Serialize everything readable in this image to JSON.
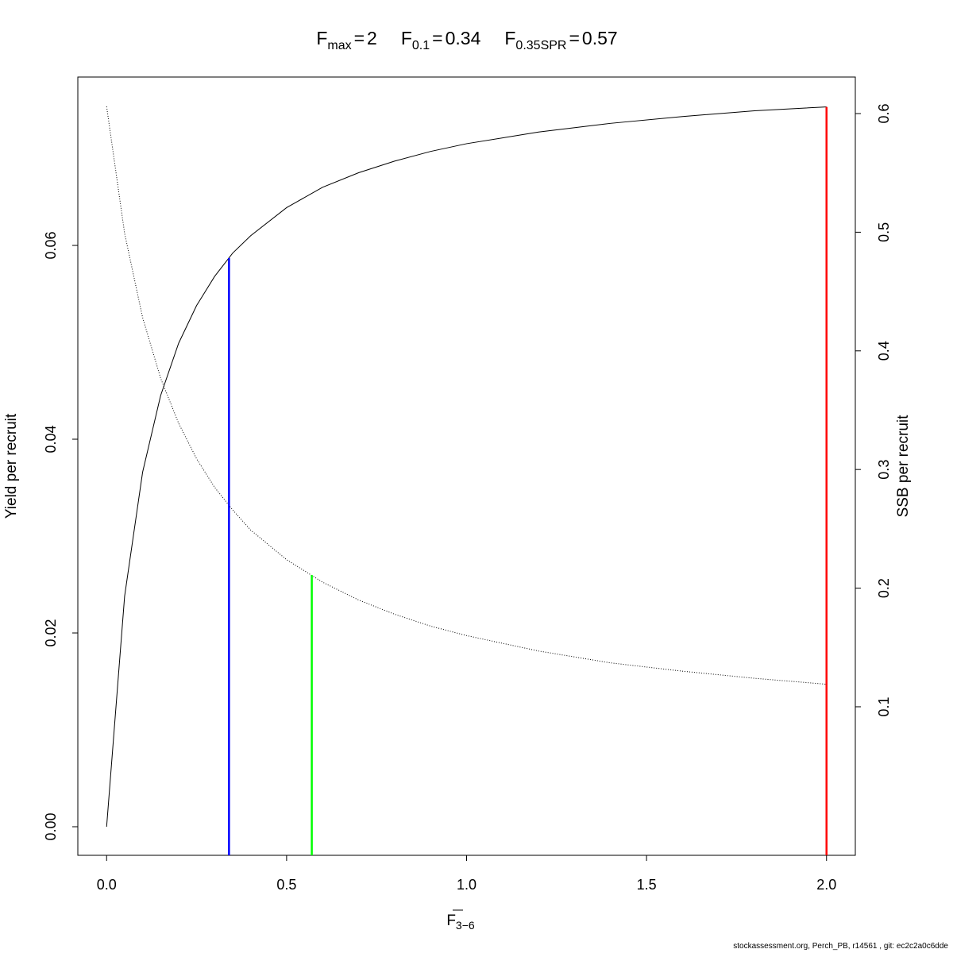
{
  "chart_data": {
    "type": "line",
    "title_items": [
      {
        "label": "F",
        "subscript": "max",
        "operator": "=",
        "value": 2,
        "color": "#ff0000",
        "top": 0.0743,
        "top_axis": "y"
      },
      {
        "label": "F",
        "subscript": "0.1",
        "operator": "=",
        "value": 0.34,
        "color": "#0000ff",
        "top": 0.0587,
        "top_axis": "y"
      },
      {
        "label": "F",
        "subscript": "0.35SPR",
        "operator": "=",
        "value": 0.57,
        "color": "#00ff00",
        "top": 0.211,
        "top_axis": "y2"
      }
    ],
    "xlabel": {
      "text": "F",
      "subscript": "3−6",
      "overline": true
    },
    "ylabel": "Yield per recruit",
    "y2label": "SSB per recruit",
    "footer": "stockassessment.org, Perch_PB, r14561 , git: ec2c2a0c6dde",
    "x": [
      0,
      0.05,
      0.1,
      0.15,
      0.2,
      0.25,
      0.3,
      0.35,
      0.4,
      0.5,
      0.6,
      0.7,
      0.8,
      0.9,
      1.0,
      1.2,
      1.4,
      1.6,
      1.8,
      2.0
    ],
    "series": [
      {
        "axis": "y",
        "color": "#000000",
        "line_style": "solid",
        "values": [
          0,
          0.0238,
          0.0366,
          0.0445,
          0.0499,
          0.0538,
          0.0568,
          0.0592,
          0.061,
          0.0639,
          0.066,
          0.0675,
          0.0687,
          0.0697,
          0.0705,
          0.0717,
          0.0726,
          0.0733,
          0.0739,
          0.0743
        ]
      },
      {
        "axis": "y2",
        "color": "#000000",
        "line_style": "dotted",
        "values": [
          0.606,
          0.499,
          0.428,
          0.377,
          0.339,
          0.309,
          0.285,
          0.266,
          0.249,
          0.224,
          0.205,
          0.19,
          0.178,
          0.168,
          0.16,
          0.147,
          0.137,
          0.13,
          0.124,
          0.119
        ]
      }
    ],
    "xlim": [
      -0.08,
      2.08
    ],
    "ylim": [
      -0.00295,
      0.07738
    ],
    "y2lim": [
      -0.0252,
      0.6308
    ],
    "xticks": [
      {
        "value": 0,
        "label": "0.0"
      },
      {
        "value": 0.5,
        "label": "0.5"
      },
      {
        "value": 1,
        "label": "1.0"
      },
      {
        "value": 1.5,
        "label": "1.5"
      },
      {
        "value": 2,
        "label": "2.0"
      }
    ],
    "yticks": [
      {
        "value": 0,
        "label": "0.00"
      },
      {
        "value": 0.02,
        "label": "0.02"
      },
      {
        "value": 0.04,
        "label": "0.04"
      },
      {
        "value": 0.06,
        "label": "0.06"
      }
    ],
    "y2ticks": [
      0.1,
      0.2,
      0.3,
      0.4,
      0.5,
      0.6
    ],
    "grid": false
  }
}
